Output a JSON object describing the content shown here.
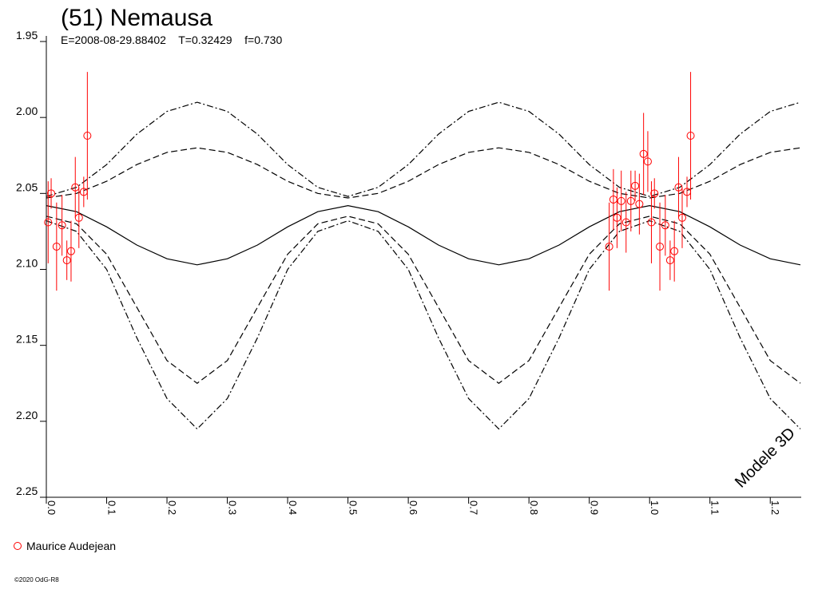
{
  "chart_data": {
    "type": "lightcurve",
    "title": "(51) Nemausa",
    "subtitle": "E=2008-08-29.88402    T=0.32429    f=0.730",
    "annotation": "Modele 3D",
    "footer": "©2020 OdG-R8",
    "xlim": [
      0,
      1.25
    ],
    "ylim": [
      1.95,
      2.25
    ],
    "y_inverted": true,
    "xticks": [
      {
        "value": 0,
        "label": "0.0"
      },
      0.1,
      0.2,
      0.3,
      0.4,
      0.5,
      0.6,
      0.7,
      0.8,
      0.9,
      {
        "value": 1,
        "label": "1.0"
      },
      1.1,
      1.2
    ],
    "yticks": [
      1.95,
      {
        "value": 2,
        "label": "2.00"
      },
      2.05,
      {
        "value": 2.1,
        "label": "2.10"
      },
      2.15,
      {
        "value": 2.2,
        "label": "2.20"
      },
      2.25
    ],
    "curve_x": [
      0,
      0.05,
      0.1,
      0.15,
      0.2,
      0.25,
      0.3,
      0.35,
      0.4,
      0.45,
      0.5,
      0.55,
      0.6,
      0.65,
      0.7,
      0.75,
      0.8,
      0.85,
      0.9,
      0.95,
      1.0,
      1.05,
      1.1,
      1.15,
      1.2,
      1.25
    ],
    "curves": [
      {
        "style": "solid",
        "color": "#000000",
        "values": [
          2.058,
          2.062,
          2.072,
          2.084,
          2.093,
          2.097,
          2.093,
          2.084,
          2.072,
          2.062,
          2.058,
          2.062,
          2.072,
          2.084,
          2.093,
          2.097,
          2.093,
          2.084,
          2.072,
          2.062,
          2.058,
          2.062,
          2.072,
          2.084,
          2.093,
          2.097
        ]
      },
      {
        "style": "dashed",
        "color": "#000000",
        "values": [
          2.053,
          2.05,
          2.042,
          2.031,
          2.023,
          2.02,
          2.023,
          2.031,
          2.042,
          2.05,
          2.053,
          2.05,
          2.042,
          2.031,
          2.023,
          2.02,
          2.023,
          2.031,
          2.042,
          2.05,
          2.053,
          2.05,
          2.042,
          2.031,
          2.023,
          2.02
        ]
      },
      {
        "style": "dashdot",
        "color": "#000000",
        "values": [
          2.052,
          2.046,
          2.031,
          2.011,
          1.996,
          1.99,
          1.996,
          2.011,
          2.031,
          2.046,
          2.052,
          2.046,
          2.031,
          2.011,
          1.996,
          1.99,
          1.996,
          2.011,
          2.031,
          2.046,
          2.052,
          2.046,
          2.031,
          2.011,
          1.996,
          1.99
        ]
      },
      {
        "style": "dashed",
        "color": "#000000",
        "values": [
          2.065,
          2.07,
          2.09,
          2.125,
          2.16,
          2.175,
          2.16,
          2.125,
          2.09,
          2.07,
          2.065,
          2.07,
          2.09,
          2.125,
          2.16,
          2.175,
          2.16,
          2.125,
          2.09,
          2.07,
          2.065,
          2.07,
          2.09,
          2.125,
          2.16,
          2.175
        ]
      },
      {
        "style": "dashdot",
        "color": "#000000",
        "values": [
          2.068,
          2.075,
          2.1,
          2.145,
          2.185,
          2.205,
          2.185,
          2.145,
          2.1,
          2.075,
          2.068,
          2.075,
          2.1,
          2.145,
          2.185,
          2.205,
          2.185,
          2.145,
          2.1,
          2.075,
          2.068,
          2.075,
          2.1,
          2.145,
          2.185,
          2.205
        ]
      }
    ],
    "series": [
      {
        "name": "Maurice Audejean",
        "color": "#ff0000",
        "x": [
          0.003,
          0.008,
          0.017,
          0.026,
          0.034,
          0.041,
          0.048,
          0.054,
          0.062,
          0.068,
          0.933,
          0.94,
          0.946,
          0.953,
          0.961,
          0.969,
          0.976,
          0.983,
          0.99,
          0.997,
          1.003,
          1.008,
          1.017,
          1.026,
          1.034,
          1.041,
          1.048,
          1.054,
          1.062,
          1.068
        ],
        "values": [
          2.069,
          2.05,
          2.085,
          2.071,
          2.094,
          2.088,
          2.046,
          2.066,
          2.049,
          2.012,
          2.085,
          2.054,
          2.066,
          2.055,
          2.069,
          2.055,
          2.045,
          2.057,
          2.024,
          2.029,
          2.069,
          2.05,
          2.085,
          2.071,
          2.094,
          2.088,
          2.046,
          2.066,
          2.049,
          2.012
        ],
        "errors": [
          0.027,
          0.01,
          0.029,
          0.02,
          0.013,
          0.02,
          0.02,
          0.02,
          0.01,
          0.042,
          0.029,
          0.02,
          0.02,
          0.02,
          0.02,
          0.02,
          0.01,
          0.02,
          0.027,
          0.02,
          0.027,
          0.01,
          0.029,
          0.02,
          0.013,
          0.02,
          0.02,
          0.02,
          0.01,
          0.042
        ]
      }
    ]
  }
}
